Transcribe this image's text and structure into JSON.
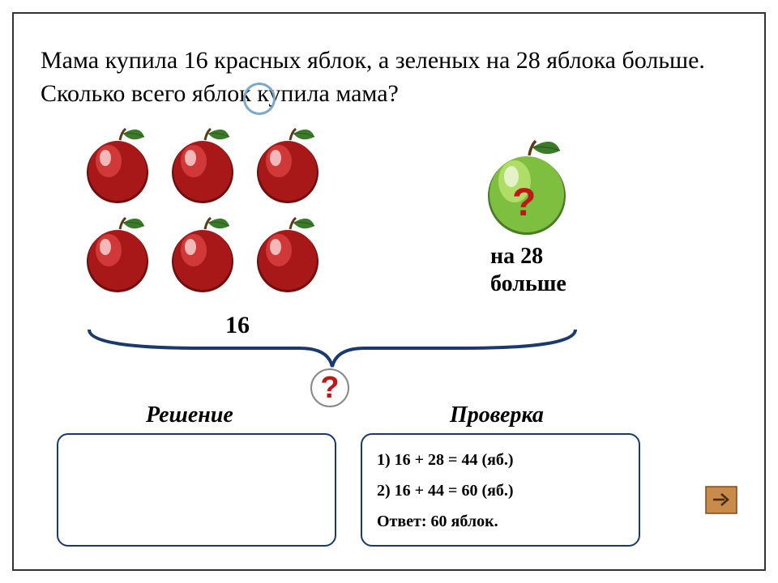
{
  "problem": {
    "text": "Мама купила  16  красных яблок, а зеленых на 28 яблока  больше. Сколько всего яблок купила мама?"
  },
  "visual": {
    "red_apple_count_label": "16",
    "green_more_label": "на 28 больше",
    "question_mark": "?",
    "colors": {
      "red_apple_body": "#a81818",
      "red_apple_highlight": "#d84040",
      "red_apple_dark": "#6e0f0f",
      "green_apple_body": "#7fbf3f",
      "green_apple_highlight": "#b8e070",
      "green_apple_dark": "#4a7a28",
      "leaf": "#3a7a2a",
      "stem": "#5a3a1a",
      "brace": "#1a3a6e",
      "box_border": "#1a3a6e",
      "question_color": "#c01818",
      "accent_circle": "#7aa8c8",
      "nav_fill": "#c98b4a",
      "nav_border": "#7a4a1a"
    }
  },
  "sections": {
    "solution_label": "Решение",
    "check_label": "Проверка"
  },
  "check": {
    "line1": "1) 16 + 28 = 44 (яб.)",
    "line2": "2) 16 + 44 = 60 (яб.)",
    "answer": "Ответ: 60 яблок."
  },
  "nav": {
    "next": "next"
  }
}
